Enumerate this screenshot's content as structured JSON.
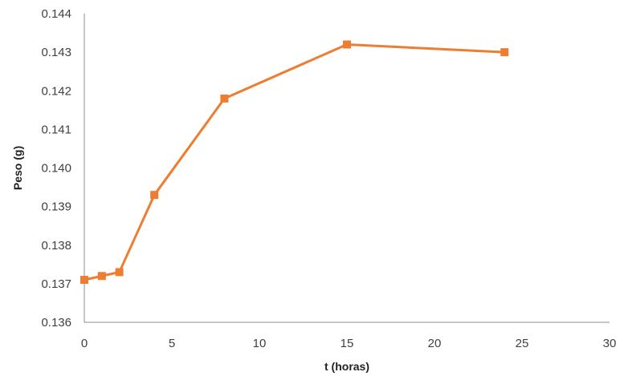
{
  "chart_data": {
    "type": "line",
    "title": "",
    "xlabel": "t (horas)",
    "ylabel": "Peso (g)",
    "xlim": [
      0,
      30
    ],
    "ylim": [
      0.136,
      0.144
    ],
    "x_ticks": [
      "0",
      "5",
      "10",
      "15",
      "20",
      "25",
      "30"
    ],
    "y_ticks": [
      "0.136",
      "0.137",
      "0.138",
      "0.139",
      "0.140",
      "0.141",
      "0.142",
      "0.143",
      "0.144"
    ],
    "grid": false,
    "legend": "none",
    "series": [
      {
        "x": [
          0,
          1,
          2,
          4,
          8,
          15,
          24
        ],
        "y": [
          0.1371,
          0.1372,
          0.1373,
          0.1393,
          0.1418,
          0.1432,
          0.143
        ],
        "color": "#ED7D31",
        "marker": "square"
      }
    ]
  }
}
